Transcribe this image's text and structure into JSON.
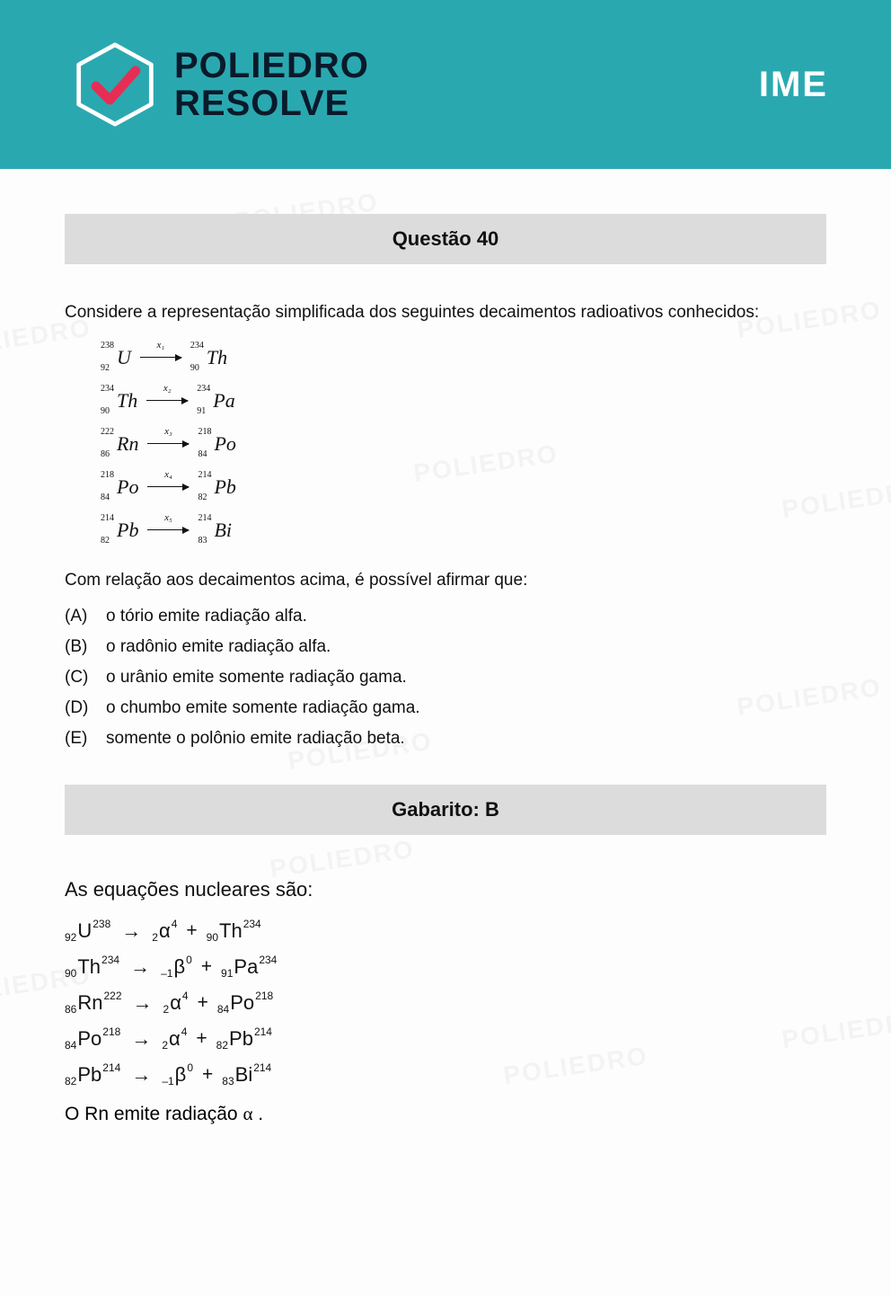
{
  "header": {
    "brand_line1": "POLIEDRO",
    "brand_line2": "RESOLVE",
    "exam_label": "IME",
    "bg_color": "#2aa8b0",
    "check_color": "#e62e55",
    "hex_stroke": "#ffffff"
  },
  "watermark_text": "POLIEDRO",
  "question": {
    "title": "Questão 40",
    "prompt": "Considere a representação simplificada dos seguintes decaimentos radioativos conhecidos:",
    "decays": [
      {
        "from": {
          "A": "238",
          "Z": "92",
          "sym": "U"
        },
        "label": "x₁",
        "to": {
          "A": "234",
          "Z": "90",
          "sym": "Th"
        }
      },
      {
        "from": {
          "A": "234",
          "Z": "90",
          "sym": "Th"
        },
        "label": "x₂",
        "to": {
          "A": "234",
          "Z": "91",
          "sym": "Pa"
        }
      },
      {
        "from": {
          "A": "222",
          "Z": "86",
          "sym": "Rn"
        },
        "label": "x₃",
        "to": {
          "A": "218",
          "Z": "84",
          "sym": "Po"
        }
      },
      {
        "from": {
          "A": "218",
          "Z": "84",
          "sym": "Po"
        },
        "label": "x₄",
        "to": {
          "A": "214",
          "Z": "82",
          "sym": "Pb"
        }
      },
      {
        "from": {
          "A": "214",
          "Z": "82",
          "sym": "Pb"
        },
        "label": "x₅",
        "to": {
          "A": "214",
          "Z": "83",
          "sym": "Bi"
        }
      }
    ],
    "subprompt": "Com relação aos decaimentos acima, é possível afirmar que:",
    "options": [
      {
        "letter": "(A)",
        "text": "o tório emite radiação alfa."
      },
      {
        "letter": "(B)",
        "text": "o radônio emite radiação alfa."
      },
      {
        "letter": "(C)",
        "text": "o urânio emite somente radiação gama."
      },
      {
        "letter": "(D)",
        "text": "o chumbo emite somente radiação gama."
      },
      {
        "letter": "(E)",
        "text": "somente o polônio emite radiação beta."
      }
    ]
  },
  "answer": {
    "title": "Gabarito: B",
    "solution_title": "As equações nucleares são:",
    "equations": [
      {
        "lhs": {
          "pre": "92",
          "sym": "U",
          "sup": "238"
        },
        "r1": {
          "pre": "2",
          "sym": "α",
          "sup": "4"
        },
        "r2": {
          "pre": "90",
          "sym": "Th",
          "sup": "234"
        }
      },
      {
        "lhs": {
          "pre": "90",
          "sym": "Th",
          "sup": "234"
        },
        "r1": {
          "pre": "–1",
          "sym": "β",
          "sup": "0"
        },
        "r2": {
          "pre": "91",
          "sym": "Pa",
          "sup": "234"
        }
      },
      {
        "lhs": {
          "pre": "86",
          "sym": "Rn",
          "sup": "222"
        },
        "r1": {
          "pre": "2",
          "sym": "α",
          "sup": "4"
        },
        "r2": {
          "pre": "84",
          "sym": "Po",
          "sup": "218"
        }
      },
      {
        "lhs": {
          "pre": "84",
          "sym": "Po",
          "sup": "218"
        },
        "r1": {
          "pre": "2",
          "sym": "α",
          "sup": "4"
        },
        "r2": {
          "pre": "82",
          "sym": "Pb",
          "sup": "214"
        }
      },
      {
        "lhs": {
          "pre": "82",
          "sym": "Pb",
          "sup": "214"
        },
        "r1": {
          "pre": "–1",
          "sym": "β",
          "sup": "0"
        },
        "r2": {
          "pre": "83",
          "sym": "Bi",
          "sup": "214"
        }
      }
    ],
    "conclusion_prefix": "O Rn emite radiação ",
    "conclusion_symbol": "α",
    "conclusion_suffix": " ."
  },
  "styles": {
    "bar_bg": "#dcdcdc",
    "text_color": "#111111",
    "page_bg": "#fdfdfd"
  }
}
